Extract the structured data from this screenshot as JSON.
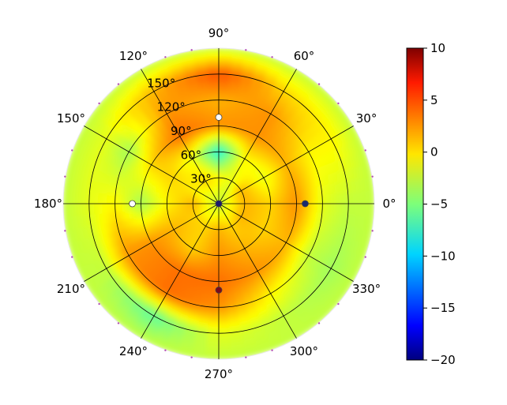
{
  "chart_data": {
    "type": "heatmap",
    "projection": "polar",
    "title": "",
    "angle_ticks_deg": [
      0,
      30,
      60,
      90,
      120,
      150,
      180,
      210,
      240,
      270,
      300,
      330
    ],
    "angle_tick_labels": [
      "0°",
      "30°",
      "60°",
      "90°",
      "120°",
      "150°",
      "180°",
      "210°",
      "240°",
      "270°",
      "300°",
      "330°"
    ],
    "radial_ticks": [
      30,
      60,
      90,
      120,
      150
    ],
    "radial_tick_labels": [
      "30°",
      "60°",
      "90°",
      "120°",
      "150°"
    ],
    "radial_label_angle_deg": 112.5,
    "rlim": [
      0,
      180
    ],
    "grid": true,
    "colormap": "jet",
    "colorbar": {
      "min": -20,
      "max": 10,
      "ticks": [
        -20,
        -15,
        -10,
        -5,
        0,
        5,
        10
      ],
      "tick_labels": [
        "−20",
        "−15",
        "−10",
        "−5",
        "0",
        "5",
        "10"
      ],
      "placement": "right"
    },
    "value_description": "gain pattern with strong ~5 band near r=150 around 90°, warm ring near r=90-120, cool ~-8 spots near r=60 at 90° and near r=150 around 240°, mostly ~0 to -3 elsewhere",
    "samples": {
      "r": [
        0,
        30,
        60,
        90,
        120,
        150,
        180
      ],
      "theta_deg": [
        0,
        30,
        60,
        90,
        120,
        150,
        180,
        210,
        240,
        270,
        300,
        330
      ],
      "values": [
        [
          -3,
          -3,
          -3,
          -3,
          -3,
          -3,
          -3,
          -3,
          -3,
          -3,
          -3,
          -3
        ],
        [
          1,
          1,
          -2,
          -1,
          0,
          -1,
          1,
          0,
          0,
          1,
          0,
          1
        ],
        [
          0,
          -2,
          -1,
          -8,
          -2,
          0,
          -1,
          1,
          0,
          2,
          1,
          0
        ],
        [
          2,
          1,
          2,
          2,
          3,
          0,
          -4,
          2,
          3,
          3,
          2,
          1
        ],
        [
          -2,
          -1,
          2,
          1,
          2,
          -4,
          -1,
          2,
          3,
          2,
          -1,
          -3
        ],
        [
          -3,
          -1,
          0,
          4,
          1,
          -2,
          -2,
          -3,
          -6,
          -2,
          -3,
          -4
        ],
        [
          -3,
          -3,
          -3,
          -3,
          -3,
          -3,
          -3,
          -3,
          -3,
          -3,
          -3,
          -3
        ]
      ]
    },
    "markers": [
      {
        "r": 0,
        "theta_deg": 0,
        "color": "#1a1a6e"
      },
      {
        "r": 100,
        "theta_deg": 90,
        "color": "#ffffff"
      },
      {
        "r": 100,
        "theta_deg": 270,
        "color": "#7b0a1a"
      },
      {
        "r": 100,
        "theta_deg": 0,
        "color": "#1a2a6e"
      },
      {
        "r": 100,
        "theta_deg": 180,
        "color": "#ffffff"
      }
    ]
  }
}
